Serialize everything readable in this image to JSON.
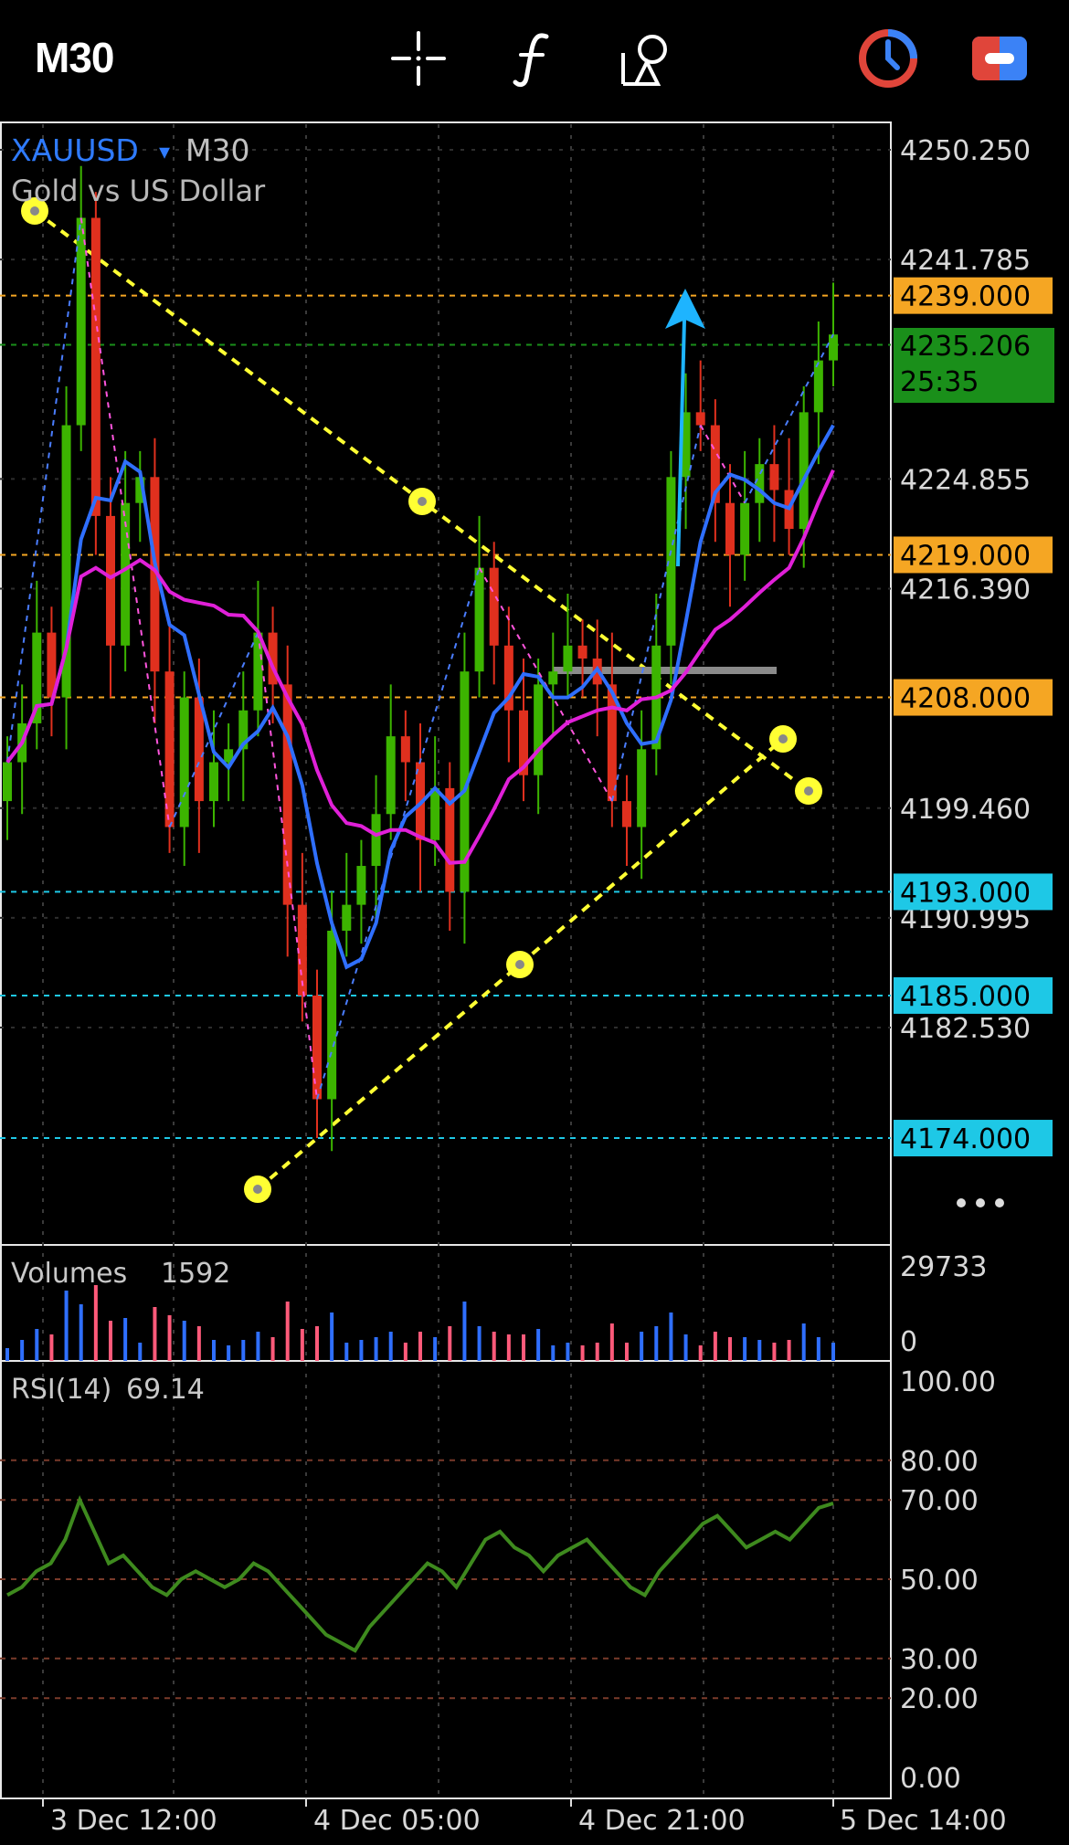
{
  "toolbar": {
    "timeframe": "M30",
    "icons": [
      "crosshair-icon",
      "function-icon",
      "objects-icon",
      "clock-icon",
      "trade-icon"
    ]
  },
  "symbol": {
    "ticker": "XAUUSD",
    "dropdown": "▾",
    "timeframe": "M30",
    "description": "Gold vs US Dollar"
  },
  "colors": {
    "bull": "#3cb400",
    "bear": "#e0301e",
    "ma_fast": "#2f6fff",
    "ma_slow": "#e020d8",
    "orange_level": "#f5a623",
    "cyan_level": "#1ec8e6",
    "current_price": "#1a8f1a",
    "trendline": "#ffff33",
    "arrow": "#1eb4ff"
  },
  "chart_data": [
    {
      "type": "candlestick",
      "symbol": "XAUUSD",
      "timeframe": "M30",
      "y_axis_ticks": [
        "4250.250",
        "4241.785",
        "4224.855",
        "4216.390",
        "4199.460",
        "4190.995",
        "4182.530"
      ],
      "ylim": [
        4163,
        4252.5
      ],
      "x_axis_ticks": [
        "3 Dec 12:00",
        "4 Dec 05:00",
        "4 Dec 21:00",
        "5 Dec 14:00"
      ],
      "horizontal_levels": [
        {
          "price": "4239.000",
          "value": 4239.0,
          "style": "orange"
        },
        {
          "price": "4219.000",
          "value": 4219.0,
          "style": "orange"
        },
        {
          "price": "4208.000",
          "value": 4208.0,
          "style": "orange"
        },
        {
          "price": "4193.000",
          "value": 4193.0,
          "style": "cyan"
        },
        {
          "price": "4185.000",
          "value": 4185.0,
          "style": "cyan"
        },
        {
          "price": "4174.000",
          "value": 4174.0,
          "style": "cyan"
        }
      ],
      "current_price": {
        "price": "4235.206",
        "value": 4235.206,
        "countdown": "25:35"
      },
      "close_series": [
        4203,
        4206,
        4213,
        4208,
        4229,
        4245,
        4222,
        4212,
        4223,
        4225,
        4210,
        4198,
        4208,
        4200,
        4203,
        4204,
        4207,
        4213,
        4209,
        4192,
        4185,
        4177,
        4190,
        4192,
        4195,
        4199,
        4205,
        4203,
        4197,
        4201,
        4193,
        4210,
        4218,
        4212,
        4207,
        4202,
        4209,
        4210,
        4212,
        4211,
        4209,
        4200,
        4198,
        4204,
        4212,
        4225,
        4230,
        4229,
        4223,
        4219,
        4223,
        4226,
        4224,
        4221,
        4230,
        4234,
        4236
      ]
    },
    {
      "type": "bar",
      "title": "Volumes",
      "last_value": "1592",
      "y_axis_ticks": [
        "29733",
        "0"
      ]
    },
    {
      "type": "line",
      "title": "RSI(14)",
      "last_value": "69.14",
      "ylim": [
        0,
        100
      ],
      "y_axis_ticks": [
        "100.00",
        "80.00",
        "70.00",
        "50.00",
        "30.00",
        "20.00",
        "0.00"
      ],
      "levels": [
        80,
        70,
        50,
        30,
        20
      ],
      "values": [
        46,
        48,
        52,
        54,
        60,
        70,
        62,
        54,
        56,
        52,
        48,
        46,
        50,
        52,
        50,
        48,
        50,
        54,
        52,
        48,
        44,
        40,
        36,
        34,
        32,
        38,
        42,
        46,
        50,
        54,
        52,
        48,
        54,
        60,
        62,
        58,
        56,
        52,
        56,
        58,
        60,
        56,
        52,
        48,
        46,
        52,
        56,
        60,
        64,
        66,
        62,
        58,
        60,
        62,
        60,
        64,
        68,
        69.14
      ]
    }
  ]
}
